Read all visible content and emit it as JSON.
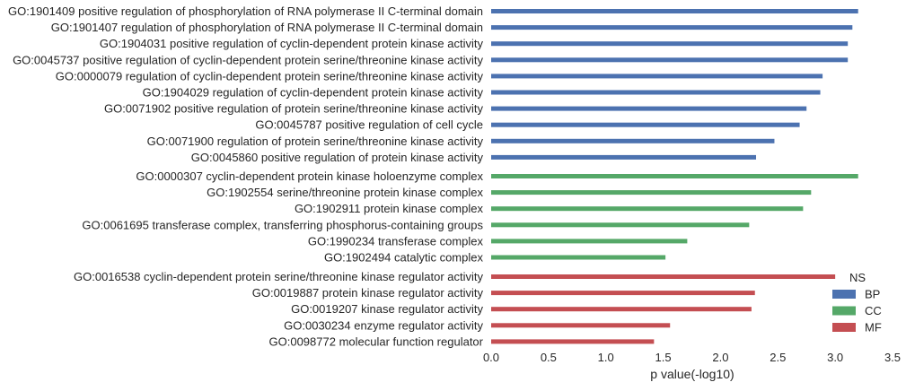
{
  "chart_data": {
    "type": "bar",
    "orientation": "horizontal",
    "xlabel": "p value(-log10)",
    "xlim": [
      0.0,
      3.5
    ],
    "xticks": [
      "0.0",
      "0.5",
      "1.0",
      "1.5",
      "2.0",
      "2.5",
      "3.0",
      "3.5"
    ],
    "grid": false,
    "legend": {
      "title": "NS",
      "placement": "right",
      "entries": [
        {
          "name": "BP",
          "color": "#4c72b0"
        },
        {
          "name": "CC",
          "color": "#55a868"
        },
        {
          "name": "MF",
          "color": "#c44e52"
        }
      ]
    },
    "bars": [
      {
        "label": "GO:1901409 positive regulation of phosphorylation of RNA polymerase II C-terminal domain",
        "value": 3.2,
        "group": "BP"
      },
      {
        "label": "GO:1901407 regulation of phosphorylation of RNA polymerase II C-terminal domain",
        "value": 3.15,
        "group": "BP"
      },
      {
        "label": "GO:1904031 positive regulation of cyclin-dependent protein kinase activity",
        "value": 3.11,
        "group": "BP"
      },
      {
        "label": "GO:0045737 positive regulation of cyclin-dependent protein serine/threonine kinase activity",
        "value": 3.11,
        "group": "BP"
      },
      {
        "label": "GO:0000079 regulation of cyclin-dependent protein serine/threonine kinase activity",
        "value": 2.89,
        "group": "BP"
      },
      {
        "label": "GO:1904029 regulation of cyclin-dependent protein kinase activity",
        "value": 2.87,
        "group": "BP"
      },
      {
        "label": "GO:0071902 positive regulation of protein serine/threonine kinase activity",
        "value": 2.75,
        "group": "BP"
      },
      {
        "label": "GO:0045787 positive regulation of cell cycle",
        "value": 2.69,
        "group": "BP"
      },
      {
        "label": "GO:0071900 regulation of protein serine/threonine kinase activity",
        "value": 2.47,
        "group": "BP"
      },
      {
        "label": "GO:0045860 positive regulation of protein kinase activity",
        "value": 2.31,
        "group": "BP"
      },
      {
        "label": "GO:0000307 cyclin-dependent protein kinase holoenzyme complex",
        "value": 3.2,
        "group": "CC"
      },
      {
        "label": "GO:1902554 serine/threonine protein kinase complex",
        "value": 2.79,
        "group": "CC"
      },
      {
        "label": "GO:1902911 protein kinase complex",
        "value": 2.72,
        "group": "CC"
      },
      {
        "label": "GO:0061695 transferase complex, transferring phosphorus-containing groups",
        "value": 2.25,
        "group": "CC"
      },
      {
        "label": "GO:1990234 transferase complex",
        "value": 1.71,
        "group": "CC"
      },
      {
        "label": "GO:1902494 catalytic complex",
        "value": 1.52,
        "group": "CC"
      },
      {
        "label": "GO:0016538 cyclin-dependent protein serine/threonine kinase regulator activity",
        "value": 3.0,
        "group": "MF"
      },
      {
        "label": "GO:0019887 protein kinase regulator activity",
        "value": 2.3,
        "group": "MF"
      },
      {
        "label": "GO:0019207 kinase regulator activity",
        "value": 2.27,
        "group": "MF"
      },
      {
        "label": "GO:0030234 enzyme regulator activity",
        "value": 1.56,
        "group": "MF"
      },
      {
        "label": "GO:0098772 molecular function regulator",
        "value": 1.42,
        "group": "MF"
      }
    ]
  }
}
